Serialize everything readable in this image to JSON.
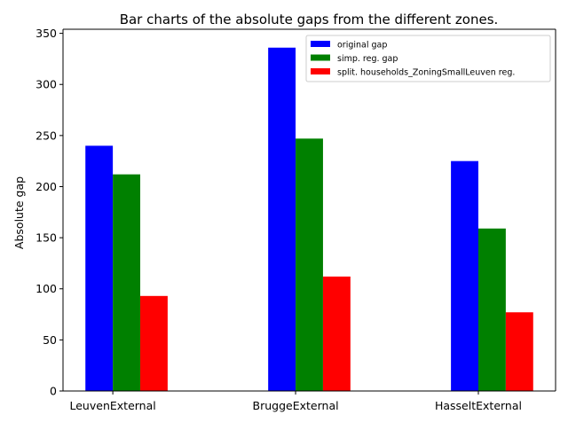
{
  "chart_data": {
    "type": "bar",
    "title": "Bar charts of the absolute gaps from the different zones.",
    "xlabel": "",
    "ylabel": "Absolute gap",
    "categories": [
      "LeuvenExternal",
      "BruggeExternal",
      "HasseltExternal"
    ],
    "series": [
      {
        "name": "original gap",
        "color": "#0000ff",
        "values": [
          240,
          336,
          225
        ]
      },
      {
        "name": "simp. reg. gap",
        "color": "#008000",
        "values": [
          212,
          247,
          159
        ]
      },
      {
        "name": "split. households_ZoningSmallLeuven reg.",
        "color": "#ff0000",
        "values": [
          93,
          112,
          77
        ]
      }
    ],
    "ylim": [
      0,
      354
    ],
    "yticks": [
      0,
      50,
      100,
      150,
      200,
      250,
      300,
      350
    ],
    "grid": false,
    "legend_position": "top-right"
  }
}
